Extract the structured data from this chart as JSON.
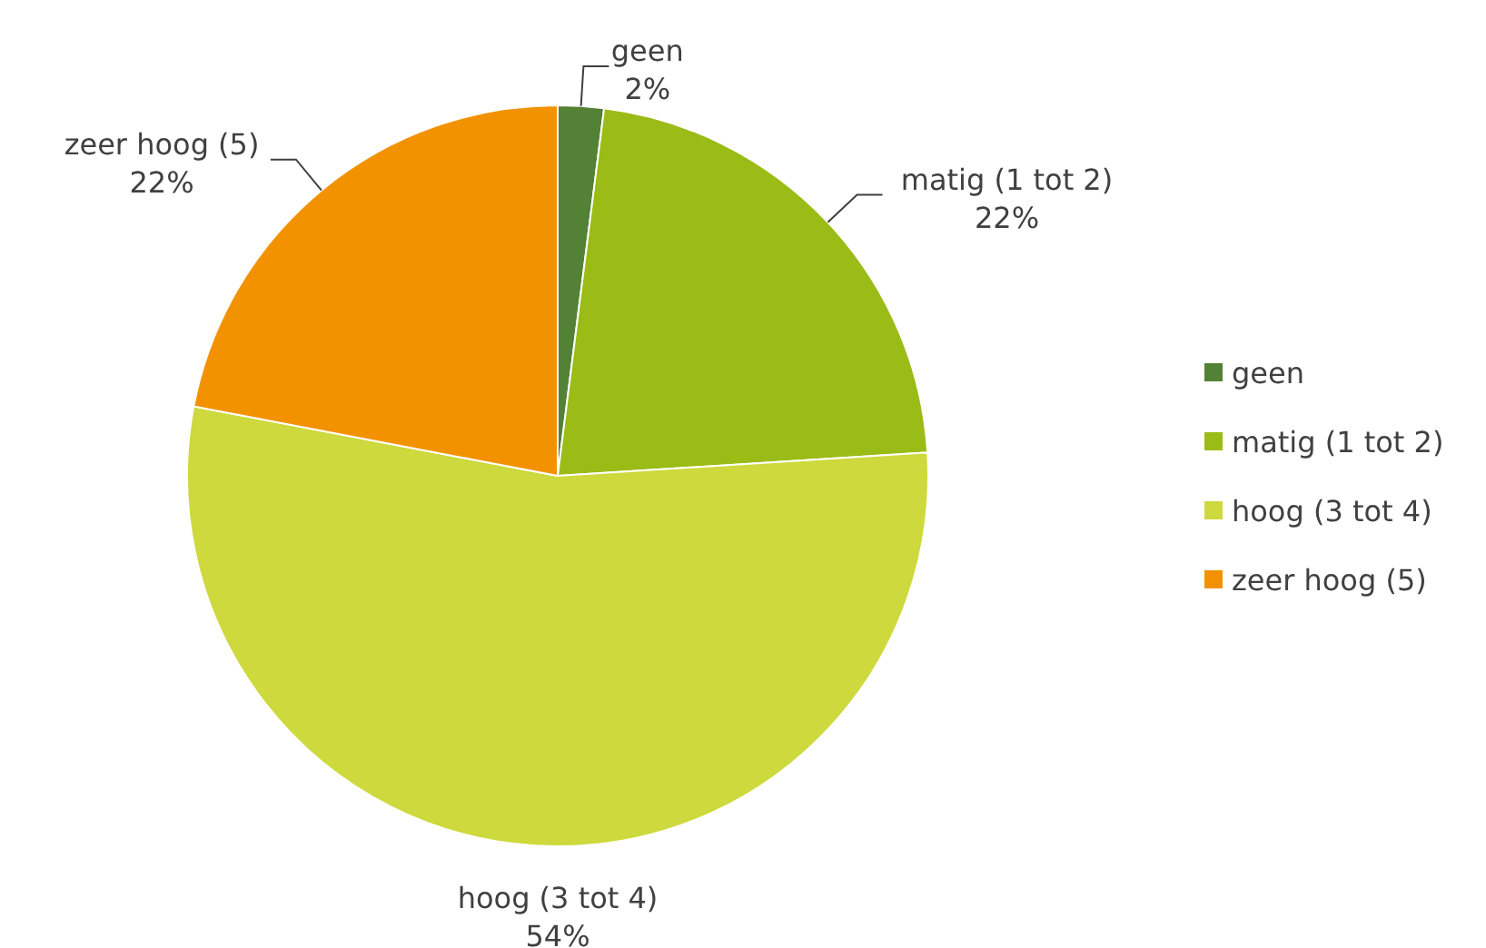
{
  "chart_data": {
    "type": "pie",
    "categories": [
      "geen",
      "matig (1 tot 2)",
      "hoog (3 tot 4)",
      "zeer hoog (5)"
    ],
    "values": [
      2,
      22,
      54,
      22
    ],
    "colors": [
      "#538135",
      "#9bbb17",
      "#cdd93c",
      "#f39200"
    ],
    "value_labels": [
      "2%",
      "22%",
      "54%",
      "22%"
    ],
    "legend": "right"
  }
}
